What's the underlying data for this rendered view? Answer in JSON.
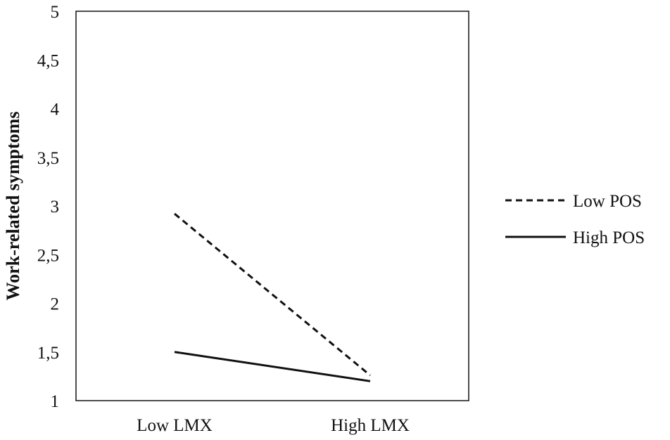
{
  "chart_data": {
    "type": "line",
    "title": "",
    "xlabel": "",
    "ylabel": "Work-related symptoms",
    "categories": [
      "Low LMX",
      "High LMX"
    ],
    "y_ticks": [
      "1",
      "1,5",
      "2",
      "2,5",
      "3",
      "3,5",
      "4",
      "4,5",
      "5"
    ],
    "ylim": [
      1,
      5
    ],
    "grid": false,
    "legend_position": "right",
    "series": [
      {
        "name": "Low POS",
        "values": [
          2.92,
          1.26
        ],
        "line_style": "dashed",
        "color": "#111111"
      },
      {
        "name": "High POS",
        "values": [
          1.5,
          1.2
        ],
        "line_style": "solid",
        "color": "#111111"
      }
    ]
  }
}
